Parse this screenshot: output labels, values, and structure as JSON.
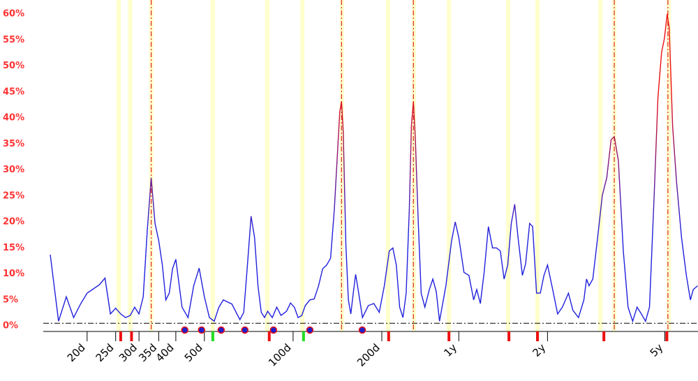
{
  "chart_data": {
    "type": "line",
    "x_scale": "log",
    "xlim": [
      14.2,
      2366
    ],
    "ylim": [
      0,
      60
    ],
    "yticks": [
      {
        "value": 0,
        "label": "0%"
      },
      {
        "value": 5,
        "label": "5%"
      },
      {
        "value": 10,
        "label": "10%"
      },
      {
        "value": 15,
        "label": "15%"
      },
      {
        "value": 20,
        "label": "20%"
      },
      {
        "value": 25,
        "label": "25%"
      },
      {
        "value": 30,
        "label": "30%"
      },
      {
        "value": 35,
        "label": "35%"
      },
      {
        "value": 40,
        "label": "40%"
      },
      {
        "value": 45,
        "label": "45%"
      },
      {
        "value": 50,
        "label": "50%"
      },
      {
        "value": 55,
        "label": "55%"
      },
      {
        "value": 60,
        "label": "60%"
      }
    ],
    "xticks": [
      {
        "value": 20,
        "label": "20d"
      },
      {
        "value": 25,
        "label": "25d"
      },
      {
        "value": 30,
        "label": "30d"
      },
      {
        "value": 35,
        "label": "35d"
      },
      {
        "value": 40,
        "label": "40d"
      },
      {
        "value": 50,
        "label": "50d"
      },
      {
        "value": 100,
        "label": "100d"
      },
      {
        "value": 200,
        "label": "200d"
      },
      {
        "value": 365,
        "label": "1y"
      },
      {
        "value": 730,
        "label": "2y"
      },
      {
        "value": 1826,
        "label": "5y"
      }
    ],
    "line_color_low": "#2020dd",
    "line_color_high": "#ee1010",
    "x": [
      15,
      16,
      17,
      18,
      19,
      20,
      22,
      23,
      24,
      25,
      26,
      27,
      28,
      29,
      30,
      31,
      32,
      33,
      34,
      35,
      36,
      37,
      38,
      39,
      40,
      42,
      44,
      46,
      48,
      50,
      52,
      54,
      56,
      58,
      62,
      66,
      68,
      70,
      72,
      74,
      76,
      78,
      80,
      82,
      85,
      88,
      91,
      95,
      98,
      101,
      104,
      107,
      110,
      114,
      118,
      122,
      126,
      130,
      134,
      138,
      141,
      144,
      146,
      148,
      151,
      154,
      157,
      160,
      163,
      167,
      172,
      180,
      188,
      196,
      204,
      212,
      218,
      224,
      230,
      236,
      242,
      248,
      252,
      256,
      260,
      266,
      272,
      280,
      290,
      298,
      306,
      314,
      330,
      345,
      355,
      365,
      380,
      395,
      410,
      420,
      432,
      445,
      460,
      475,
      490,
      505,
      520,
      535,
      550,
      565,
      580,
      600,
      615,
      635,
      650,
      670,
      690,
      710,
      730,
      760,
      790,
      820,
      860,
      890,
      930,
      970,
      990,
      1010,
      1040,
      1080,
      1120,
      1160,
      1200,
      1230,
      1270,
      1320,
      1370,
      1420,
      1470,
      1520,
      1570,
      1620,
      1680,
      1730,
      1780,
      1820,
      1860,
      1890,
      1940,
      2000,
      2080,
      2160,
      2230,
      2280,
      2360
    ],
    "values": [
      13.7,
      0.9,
      5.6,
      1.6,
      4.2,
      6.3,
      7.9,
      9.2,
      2.3,
      3.4,
      2.3,
      1.6,
      2.0,
      3.6,
      2.3,
      5.6,
      18.4,
      28.5,
      19.7,
      16.4,
      11.7,
      5.0,
      6.3,
      11.0,
      12.8,
      3.6,
      1.6,
      7.7,
      11.1,
      5.6,
      1.6,
      0.9,
      3.6,
      5.0,
      4.2,
      1.2,
      2.6,
      11.7,
      21.1,
      17.0,
      7.7,
      2.6,
      1.6,
      2.8,
      1.6,
      3.6,
      2.0,
      2.8,
      4.4,
      3.6,
      1.6,
      2.0,
      3.9,
      5.0,
      5.2,
      7.7,
      11.0,
      11.7,
      13.0,
      22.4,
      31.8,
      41.2,
      43.2,
      37.2,
      15.7,
      5.0,
      2.3,
      6.3,
      9.9,
      6.3,
      1.6,
      3.9,
      4.3,
      2.6,
      7.7,
      14.4,
      15.0,
      11.7,
      3.6,
      1.6,
      6.3,
      22.4,
      38.5,
      43.2,
      35.8,
      19.7,
      6.3,
      3.6,
      7.0,
      9.0,
      6.6,
      0.9,
      7.7,
      16.4,
      20.0,
      17.0,
      10.3,
      9.7,
      5.0,
      7.0,
      4.3,
      10.3,
      19.1,
      15.0,
      15.0,
      14.4,
      9.0,
      11.7,
      19.7,
      23.4,
      17.0,
      9.7,
      11.9,
      19.7,
      19.1,
      6.3,
      6.3,
      9.7,
      11.7,
      7.0,
      2.3,
      3.6,
      6.3,
      3.0,
      1.6,
      5.0,
      9.0,
      7.7,
      9.0,
      17.0,
      25.1,
      28.5,
      35.8,
      36.4,
      31.8,
      14.4,
      3.6,
      0.9,
      3.6,
      2.3,
      0.9,
      3.6,
      25.1,
      43.9,
      52.6,
      55.3,
      60.0,
      57.3,
      38.5,
      27.8,
      17.0,
      9.7,
      5.0,
      7.0,
      7.7
    ],
    "threshold": 0.5,
    "highlight_bands": [
      25.6,
      28.0,
      33.0,
      53.4,
      81.7,
      107.4,
      146.5,
      210,
      257,
      338,
      537,
      675,
      1103,
      1230,
      1883
    ],
    "reference_lines": [
      33,
      146,
      256,
      1230,
      1870
    ],
    "red_markers": [
      26,
      28.3,
      83,
      211,
      338,
      540,
      675,
      1134,
      1855
    ],
    "green_markers": [
      53.4,
      108.5
    ],
    "dot_markers": [
      42.9,
      48.9,
      57,
      68.6,
      85.8,
      114,
      171.7
    ]
  }
}
